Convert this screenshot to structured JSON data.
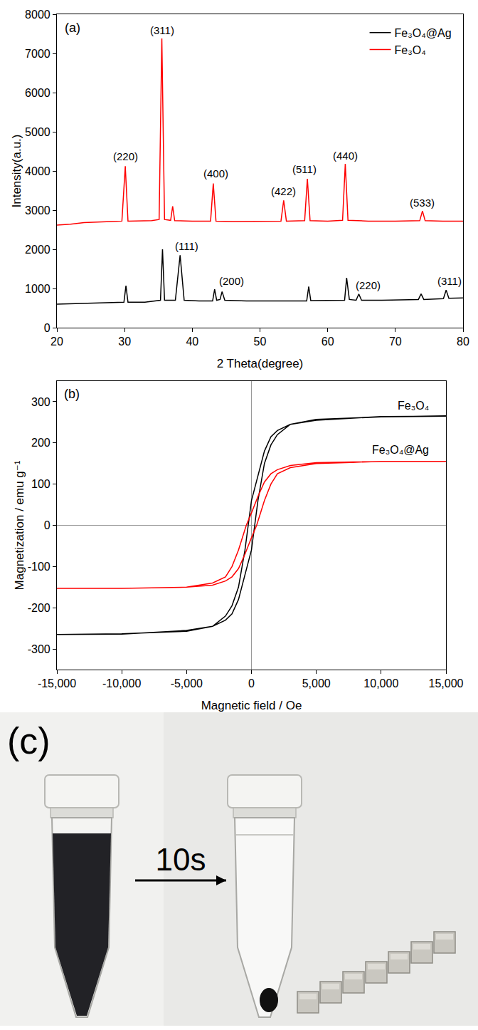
{
  "chart_data": [
    {
      "type": "line",
      "title": "(a)",
      "x_label": "2 Theta(degree)",
      "y_label": "Intensity(a.u.)",
      "xlim": [
        20,
        80
      ],
      "xticks": [
        20,
        30,
        40,
        50,
        60,
        70,
        80
      ],
      "ylim": [
        0,
        8000
      ],
      "yticks": [
        0,
        1000,
        2000,
        3000,
        4000,
        5000,
        6000,
        7000,
        8000
      ],
      "grid": false,
      "legend": "upper right",
      "series": [
        {
          "name": "Fe₃O₄@Ag",
          "color": "#000000",
          "x": [
            20,
            24,
            28,
            29.9,
            30.2,
            30.5,
            33,
            35.3,
            35.6,
            35.9,
            37.5,
            38.2,
            38.8,
            41,
            43.0,
            43.3,
            43.6,
            44.1,
            44.4,
            44.8,
            48,
            52,
            56.9,
            57.2,
            57.5,
            62.5,
            62.8,
            63.2,
            64.2,
            64.6,
            65.0,
            68,
            73.4,
            73.8,
            74.2,
            77.1,
            77.5,
            77.9,
            80
          ],
          "values": [
            600,
            620,
            640,
            650,
            1070,
            650,
            650,
            700,
            2000,
            700,
            700,
            1850,
            700,
            680,
            680,
            980,
            700,
            720,
            920,
            700,
            680,
            680,
            680,
            1050,
            690,
            700,
            1270,
            720,
            700,
            860,
            700,
            700,
            720,
            860,
            720,
            740,
            960,
            750,
            760
          ]
        },
        {
          "name": "Fe₃O₄",
          "color": "#ff0000",
          "x": [
            20,
            22,
            24,
            26,
            28,
            29.6,
            30.1,
            30.5,
            32,
            34,
            35.1,
            35.5,
            35.9,
            36.8,
            37.1,
            37.4,
            40,
            42.7,
            43.1,
            43.5,
            46,
            50,
            53.1,
            53.5,
            53.9,
            56.6,
            57.0,
            57.4,
            60,
            62.2,
            62.6,
            63.0,
            66,
            70,
            73.6,
            74.0,
            74.4,
            77,
            80
          ],
          "values": [
            2620,
            2640,
            2680,
            2700,
            2710,
            2720,
            4120,
            2720,
            2720,
            2730,
            2760,
            7380,
            2760,
            2740,
            3100,
            2730,
            2720,
            2720,
            3680,
            2720,
            2710,
            2720,
            2720,
            3250,
            2720,
            2730,
            3800,
            2730,
            2720,
            2740,
            4180,
            2740,
            2720,
            2720,
            2730,
            2980,
            2730,
            2720,
            2720
          ]
        }
      ],
      "annotations": [
        {
          "text": "(220)",
          "x": 30.1,
          "y": 4180
        },
        {
          "text": "(311)",
          "x": 35.5,
          "y": 7400
        },
        {
          "text": "(400)",
          "x": 43.5,
          "y": 3750
        },
        {
          "text": "(422)",
          "x": 53.5,
          "y": 3300
        },
        {
          "text": "(511)",
          "x": 56.6,
          "y": 3850
        },
        {
          "text": "(440)",
          "x": 62.6,
          "y": 4200
        },
        {
          "text": "(533)",
          "x": 74.0,
          "y": 3000
        },
        {
          "text": "(111)",
          "x": 39.2,
          "y": 1900
        },
        {
          "text": "(200)",
          "x": 45.8,
          "y": 1000
        },
        {
          "text": "(220)",
          "x": 66.0,
          "y": 900
        },
        {
          "text": "(311)",
          "x": 78.0,
          "y": 1000
        }
      ]
    },
    {
      "type": "line",
      "title": "(b)",
      "x_label": "Magnetic field / Oe",
      "y_label": "Magnetization / emu g⁻¹",
      "xlim": [
        -15000,
        15000
      ],
      "xticks": [
        {
          "value": -15000,
          "label": "-15,000"
        },
        {
          "value": -10000,
          "label": "-10,000"
        },
        {
          "value": -5000,
          "label": "-5,000"
        },
        0,
        {
          "value": 5000,
          "label": "5,000"
        },
        {
          "value": 10000,
          "label": "10,000"
        },
        {
          "value": 15000,
          "label": "15,000"
        }
      ],
      "ylim": [
        -350,
        350
      ],
      "yticks": [
        -300,
        -200,
        -100,
        0,
        100,
        200,
        300
      ],
      "grid": false,
      "series": [
        {
          "color": "#000000",
          "x": [
            15000,
            10000,
            5000,
            3000,
            2000,
            1500,
            1000,
            500,
            0,
            -250,
            -500,
            -1000,
            -1500,
            -2000,
            -3000,
            -5000,
            -10000,
            -15000,
            -10000,
            -5000,
            -3000,
            -2000,
            -1500,
            -1000,
            -500,
            0,
            250,
            500,
            1000,
            1500,
            2000,
            3000,
            5000,
            10000,
            15000
          ],
          "values": [
            265,
            264,
            255,
            245,
            230,
            215,
            180,
            120,
            60,
            0,
            -60,
            -150,
            -195,
            -220,
            -245,
            -257,
            -263,
            -265,
            -264,
            -255,
            -245,
            -230,
            -215,
            -180,
            -120,
            -60,
            0,
            60,
            150,
            195,
            220,
            245,
            257,
            263,
            265
          ]
        },
        {
          "color": "#ff0000",
          "x": [
            15000,
            10000,
            5000,
            3000,
            2000,
            1500,
            1000,
            500,
            0,
            -400,
            -1000,
            -1500,
            -2000,
            -3000,
            -5000,
            -10000,
            -15000,
            -10000,
            -5000,
            -3000,
            -2000,
            -1500,
            -1000,
            -500,
            0,
            400,
            1000,
            1500,
            2000,
            3000,
            5000,
            10000,
            15000
          ],
          "values": [
            155,
            155,
            152,
            145,
            135,
            125,
            105,
            70,
            30,
            0,
            -60,
            -100,
            -125,
            -140,
            -150,
            -153,
            -153,
            -153,
            -150,
            -145,
            -135,
            -125,
            -105,
            -70,
            -30,
            0,
            60,
            100,
            125,
            140,
            150,
            155,
            155
          ]
        }
      ],
      "annotations": [
        {
          "text": "Fe₃O₄",
          "x": 12500,
          "y": 272
        },
        {
          "text": "Fe₃O₄@Ag",
          "x": 11500,
          "y": 165
        }
      ]
    }
  ],
  "photo": {
    "label": "(c)",
    "arrow_text": "10s"
  }
}
